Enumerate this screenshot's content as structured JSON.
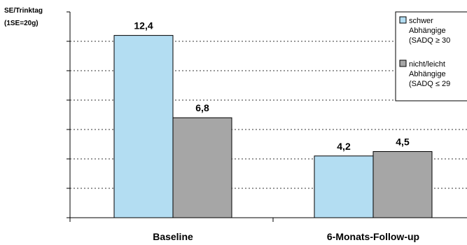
{
  "chart_data": {
    "type": "bar",
    "ylabel_line1": "SE/Trinktag",
    "ylabel_line2": "(1SE=20g)",
    "categories": [
      "Baseline",
      "6-Monats-Follow-up"
    ],
    "ylim": [
      0,
      14
    ],
    "grid": true,
    "legend_position": "top-right",
    "series": [
      {
        "name_lines": [
          "schwer",
          "Abhängige",
          "(SADQ ≥ 30"
        ],
        "values": [
          12.4,
          4.2
        ],
        "labels": [
          "12,4",
          "4,2"
        ],
        "color": "#b3ddf2"
      },
      {
        "name_lines": [
          "nicht/leicht",
          "Abhängige",
          "(SADQ ≤ 29"
        ],
        "values": [
          6.8,
          4.5
        ],
        "labels": [
          "6,8",
          "4,5"
        ],
        "color": "#a6a6a6"
      }
    ]
  }
}
